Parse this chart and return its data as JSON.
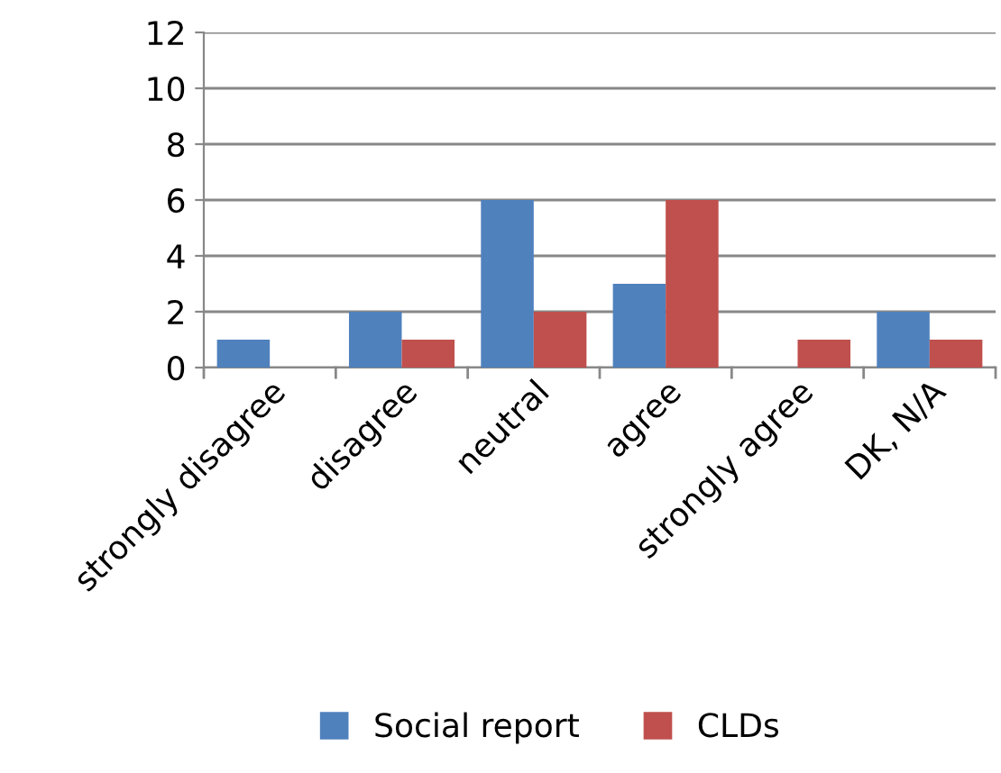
{
  "chart_data": {
    "type": "bar",
    "categories": [
      "strongly disagree",
      "disagree",
      "neutral",
      "agree",
      "strongly agree",
      "DK, N/A"
    ],
    "series": [
      {
        "name": "Social report",
        "color": "#4f81bd",
        "values": [
          1,
          2,
          6,
          3,
          0,
          2
        ]
      },
      {
        "name": "CLDs",
        "color": "#c0504d",
        "values": [
          0,
          1,
          2,
          6,
          1,
          1
        ]
      }
    ],
    "ylim": [
      0,
      12
    ],
    "yticks": [
      0,
      2,
      4,
      6,
      8,
      10,
      12
    ],
    "grid": "y",
    "legend": "bottom"
  }
}
